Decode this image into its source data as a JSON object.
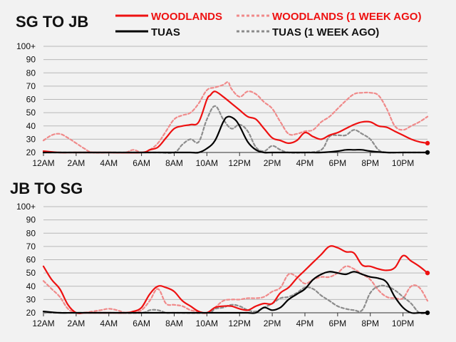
{
  "legend": {
    "woodlands": "WOODLANDS",
    "woodlands_prev": "WOODLANDS (1 WEEK AGO)",
    "tuas": "TUAS",
    "tuas_prev": "TUAS (1 WEEK AGO)"
  },
  "colors": {
    "woodlands": "#ee1111",
    "woodlands_prev": "#f08a8a",
    "tuas": "#000000",
    "tuas_prev": "#8c8c8c",
    "grid": "#b8b8b8",
    "background": "#f2f2f2"
  },
  "chart_data": [
    {
      "type": "line",
      "title": "SG TO JB",
      "x": [
        "12AM",
        "2AM",
        "4AM",
        "6AM",
        "8AM",
        "10AM",
        "12PM",
        "2PM",
        "4PM",
        "6PM",
        "8PM",
        "10PM"
      ],
      "x_hours": [
        0,
        2,
        4,
        6,
        8,
        10,
        12,
        14,
        16,
        18,
        20,
        22
      ],
      "y_ticks": [
        "20",
        "30",
        "40",
        "50",
        "60",
        "70",
        "80",
        "90",
        "100+"
      ],
      "ylim": [
        20,
        100
      ],
      "xlim": [
        0,
        23.5
      ],
      "grid": true,
      "legend_position": "top",
      "series": [
        {
          "name": "WOODLANDS",
          "style": "solid",
          "x": [
            0,
            1,
            2,
            4,
            6,
            6.5,
            7,
            7.5,
            8,
            8.5,
            9,
            9.5,
            10,
            10.2,
            10.5,
            11,
            11.5,
            12,
            12.5,
            13,
            13.5,
            14,
            14.5,
            15,
            15.5,
            16,
            16.5,
            17,
            17.5,
            18,
            18.5,
            19,
            19.5,
            20,
            20.5,
            21,
            21.5,
            22,
            22.5,
            23,
            23.5
          ],
          "y": [
            21,
            20,
            20,
            20,
            20,
            22,
            24,
            31,
            38,
            40,
            41,
            43,
            60,
            63,
            66,
            62,
            57,
            52,
            47,
            45,
            38,
            31,
            29,
            27,
            29,
            35,
            32,
            30,
            33,
            35,
            38,
            41,
            43,
            43,
            40,
            39,
            36,
            33,
            30,
            28,
            27
          ]
        },
        {
          "name": "WOODLANDS (1 WEEK AGO)",
          "style": "dashed",
          "x": [
            0,
            0.5,
            1,
            1.5,
            2,
            2.5,
            3,
            4,
            5,
            5.5,
            6,
            6.5,
            7,
            7.5,
            8,
            8.5,
            9,
            9.5,
            10,
            10.5,
            11,
            11.3,
            11.5,
            12,
            12.5,
            13,
            13.5,
            14,
            14.5,
            15,
            15.5,
            16,
            16.5,
            17,
            17.5,
            18,
            18.5,
            19,
            19.5,
            20,
            20.5,
            21,
            21.5,
            22,
            22.5,
            23,
            23.5
          ],
          "y": [
            29,
            33,
            34,
            31,
            27,
            23,
            20,
            20,
            20,
            22,
            20,
            22,
            27,
            36,
            45,
            48,
            50,
            57,
            67,
            69,
            71,
            73,
            68,
            62,
            66,
            64,
            58,
            53,
            43,
            34,
            34,
            36,
            37,
            43,
            47,
            53,
            59,
            64,
            65,
            65,
            63,
            53,
            40,
            37,
            40,
            43,
            47
          ]
        },
        {
          "name": "TUAS",
          "style": "solid",
          "x": [
            0,
            2,
            4,
            6,
            7,
            8,
            9,
            9.5,
            10,
            10.5,
            11,
            11.3,
            11.7,
            12,
            12.5,
            13,
            13.5,
            14,
            16,
            17,
            18,
            18.5,
            19,
            19.5,
            20,
            21,
            22,
            23,
            23.5
          ],
          "y": [
            20,
            20,
            20,
            20,
            20,
            20,
            20,
            20,
            23,
            29,
            43,
            47,
            45,
            40,
            28,
            22,
            20,
            20,
            20,
            20,
            21,
            22,
            22,
            22,
            21,
            20,
            20,
            20,
            20
          ]
        },
        {
          "name": "TUAS (1 WEEK AGO)",
          "style": "dashed",
          "x": [
            0,
            2,
            4,
            6,
            7,
            8,
            8.5,
            9,
            9.5,
            10,
            10.5,
            11,
            11.5,
            12,
            12.5,
            13,
            13.5,
            14,
            14.5,
            15,
            16,
            17,
            17.5,
            18,
            18.5,
            19,
            19.5,
            20,
            20.5,
            21,
            22,
            23,
            23.5
          ],
          "y": [
            20,
            20,
            20,
            20,
            20,
            20,
            26,
            30,
            28,
            45,
            55,
            45,
            38,
            41,
            36,
            24,
            21,
            25,
            22,
            20,
            20,
            22,
            32,
            33,
            33,
            37,
            34,
            30,
            22,
            20,
            20,
            20,
            20
          ]
        }
      ]
    },
    {
      "type": "line",
      "title": "JB TO SG",
      "x": [
        "12AM",
        "2AM",
        "4AM",
        "6AM",
        "8AM",
        "10AM",
        "12PM",
        "2PM",
        "4PM",
        "6PM",
        "8PM",
        "10PM"
      ],
      "x_hours": [
        0,
        2,
        4,
        6,
        8,
        10,
        12,
        14,
        16,
        18,
        20,
        22
      ],
      "y_ticks": [
        "20",
        "30",
        "40",
        "50",
        "60",
        "70",
        "80",
        "90",
        "100+"
      ],
      "ylim": [
        20,
        100
      ],
      "xlim": [
        0,
        23.5
      ],
      "grid": true,
      "legend_position": "top",
      "series": [
        {
          "name": "WOODLANDS",
          "style": "solid",
          "x": [
            0,
            0.5,
            1,
            1.5,
            2,
            2.5,
            3,
            4,
            5,
            5.5,
            6,
            6.5,
            7,
            7.5,
            8,
            8.5,
            9,
            9.5,
            10,
            10.5,
            11,
            11.5,
            12,
            12.5,
            13,
            13.5,
            14,
            14.5,
            15,
            15.5,
            16,
            16.5,
            17,
            17.5,
            18,
            18.5,
            19,
            19.5,
            20,
            20.5,
            21,
            21.5,
            22,
            22.5,
            23,
            23.5
          ],
          "y": [
            55,
            45,
            38,
            26,
            20,
            20,
            20,
            20,
            20,
            21,
            24,
            34,
            40,
            39,
            36,
            29,
            25,
            21,
            20,
            24,
            25,
            25,
            23,
            22,
            25,
            27,
            27,
            35,
            39,
            46,
            52,
            58,
            64,
            70,
            69,
            66,
            65,
            56,
            55,
            53,
            52,
            54,
            63,
            59,
            55,
            50
          ]
        },
        {
          "name": "WOODLANDS (1 WEEK AGO)",
          "style": "dashed",
          "x": [
            0,
            0.5,
            1,
            1.5,
            2,
            2.5,
            3,
            3.5,
            4,
            4.5,
            5,
            5.5,
            6,
            6.5,
            7,
            7.5,
            8,
            8.5,
            9,
            9.5,
            10,
            10.5,
            11,
            11.5,
            12,
            12.5,
            13,
            13.5,
            14,
            14.5,
            15,
            15.5,
            16,
            16.5,
            17,
            17.5,
            18,
            18.5,
            19,
            19.5,
            20,
            20.5,
            21,
            21.5,
            22,
            22.5,
            23,
            23.5
          ],
          "y": [
            44,
            38,
            32,
            23,
            20,
            20,
            21,
            22,
            23,
            22,
            20,
            20,
            22,
            29,
            38,
            27,
            26,
            25,
            22,
            21,
            20,
            24,
            29,
            30,
            30,
            31,
            31,
            32,
            36,
            39,
            49,
            47,
            42,
            45,
            47,
            47,
            50,
            55,
            53,
            49,
            45,
            37,
            32,
            31,
            31,
            40,
            39,
            29
          ]
        },
        {
          "name": "TUAS",
          "style": "solid",
          "x": [
            0,
            1,
            2,
            4,
            6,
            8,
            10,
            12,
            12.5,
            13,
            13.5,
            14,
            14.5,
            15,
            15.5,
            16,
            16.5,
            17,
            17.5,
            18,
            18.5,
            19,
            19.5,
            20,
            20.5,
            21,
            21.5,
            22,
            22.5,
            23,
            23.5
          ],
          "y": [
            21,
            20,
            20,
            20,
            20,
            20,
            20,
            20,
            20,
            20,
            24,
            22,
            24,
            30,
            34,
            38,
            45,
            49,
            51,
            50,
            49,
            51,
            49,
            47,
            46,
            43,
            32,
            24,
            20,
            20,
            20
          ]
        },
        {
          "name": "TUAS (1 WEEK AGO)",
          "style": "dashed",
          "x": [
            0,
            2,
            4,
            6,
            6.5,
            7,
            7.5,
            8,
            10,
            10.5,
            11,
            11.5,
            12,
            12.5,
            13,
            13.5,
            14,
            14.5,
            15,
            15.5,
            16,
            16.5,
            17,
            17.5,
            18,
            18.5,
            19,
            19.5,
            20,
            20.5,
            21,
            21.5,
            22,
            22.5,
            23,
            23.5
          ],
          "y": [
            20,
            20,
            20,
            20,
            22,
            22,
            20,
            20,
            20,
            23,
            24,
            26,
            25,
            22,
            21,
            24,
            27,
            31,
            32,
            35,
            39,
            38,
            33,
            29,
            25,
            23,
            22,
            22,
            35,
            40,
            40,
            37,
            32,
            27,
            20,
            20
          ]
        }
      ]
    }
  ]
}
